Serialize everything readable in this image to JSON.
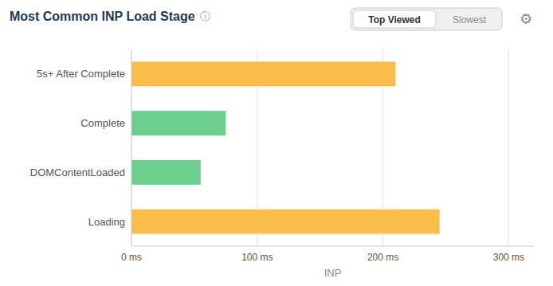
{
  "chart_data": {
    "type": "bar",
    "orientation": "horizontal",
    "title": "Most Common INP Load Stage",
    "annotations": [
      "ⓘ",
      "Top Viewed",
      "Slowest",
      "⚙"
    ],
    "categories": [
      "Loading",
      "DOMContentLoaded",
      "Complete",
      "5s+ After Complete"
    ],
    "values": [
      245,
      55,
      75,
      210
    ],
    "colors": [
      "#FBBD4A",
      "#6DCF8E",
      "#6DCF8E",
      "#FBBD4A"
    ],
    "xlabel": "INP",
    "xlim": [
      0,
      320
    ],
    "xticks": [
      {
        "value": 0,
        "label": "0 ms"
      },
      {
        "value": 100,
        "label": "100 ms"
      },
      {
        "value": 200,
        "label": "200 ms"
      },
      {
        "value": 300,
        "label": "300 ms"
      }
    ],
    "grid": true
  }
}
